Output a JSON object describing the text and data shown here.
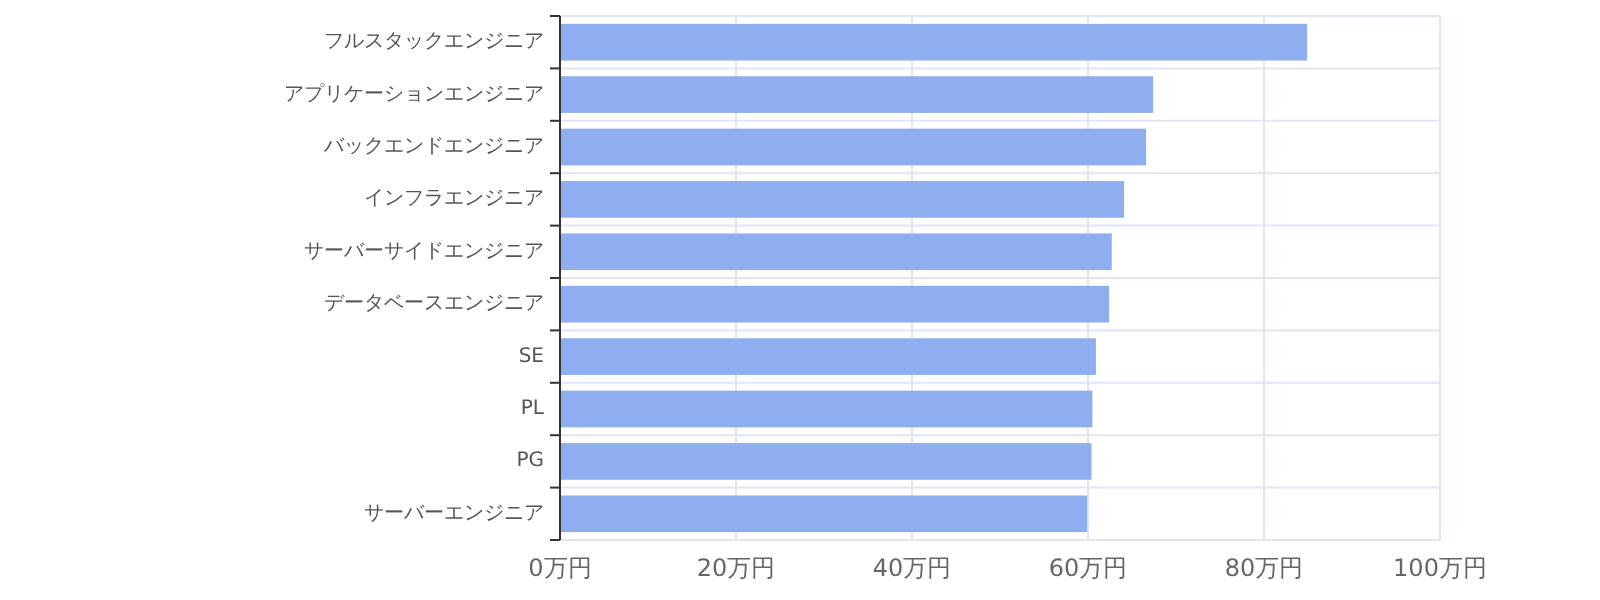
{
  "chart_data": {
    "type": "bar",
    "orientation": "horizontal",
    "categories": [
      "フルスタックエンジニア",
      "アプリケーションエンジニア",
      "バックエンドエンジニア",
      "インフラエンジニア",
      "サーバーサイドエンジニア",
      "データベースエンジニア",
      "SE",
      "PL",
      "PG",
      "サーバーエンジニア"
    ],
    "values": [
      84.9,
      67.4,
      66.6,
      64.1,
      62.7,
      62.4,
      60.9,
      60.5,
      60.4,
      59.9
    ],
    "color": "#8eaef0",
    "xlim": [
      0,
      100
    ],
    "xticks": [
      {
        "value": 0,
        "label": "0万円"
      },
      {
        "value": 20,
        "label": "20万円"
      },
      {
        "value": 40,
        "label": "40万円"
      },
      {
        "value": 60,
        "label": "60万円"
      },
      {
        "value": 80,
        "label": "80万円"
      },
      {
        "value": 100,
        "label": "100万円"
      }
    ],
    "grid": true
  }
}
